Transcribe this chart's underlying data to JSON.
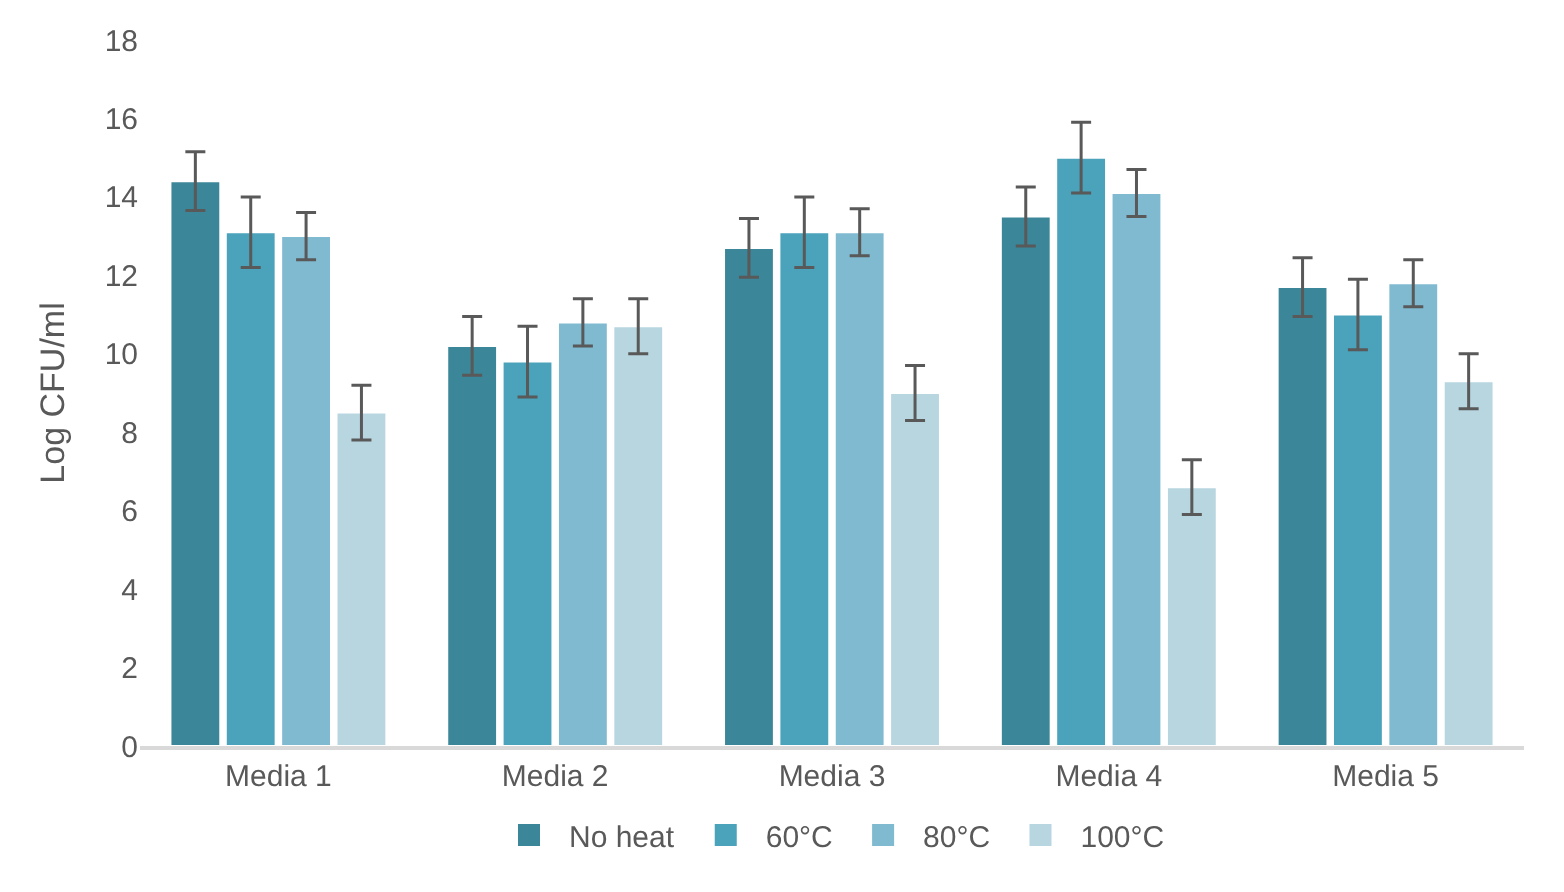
{
  "chart_data": {
    "type": "bar",
    "ylabel": "Log CFU/ml",
    "categories": [
      "Media 1",
      "Media 2",
      "Media 3",
      "Media 4",
      "Media 5"
    ],
    "series": [
      {
        "name": "No heat",
        "color": "#3b8698",
        "values": [
          14.4,
          10.2,
          12.7,
          13.5,
          11.7
        ],
        "errors": [
          0.75,
          0.75,
          0.75,
          0.75,
          0.75
        ]
      },
      {
        "name": "60°C",
        "color": "#4aa2bb",
        "values": [
          13.1,
          9.8,
          13.1,
          15.0,
          11.0
        ],
        "errors": [
          0.9,
          0.9,
          0.9,
          0.9,
          0.9
        ]
      },
      {
        "name": "80°C",
        "color": "#7fbad0",
        "values": [
          13.0,
          10.8,
          13.1,
          14.1,
          11.8
        ],
        "errors": [
          0.6,
          0.6,
          0.6,
          0.6,
          0.6
        ]
      },
      {
        "name": "100°C",
        "color": "#b8d6e0",
        "values": [
          8.5,
          10.7,
          9.0,
          6.6,
          9.3
        ],
        "errors": [
          0.7,
          0.7,
          0.7,
          0.7,
          0.7
        ]
      }
    ],
    "ylim": [
      0,
      18
    ],
    "yticks": [
      0,
      2,
      4,
      6,
      8,
      10,
      12,
      14,
      16,
      18
    ],
    "grid": false,
    "legend": "bottom"
  }
}
